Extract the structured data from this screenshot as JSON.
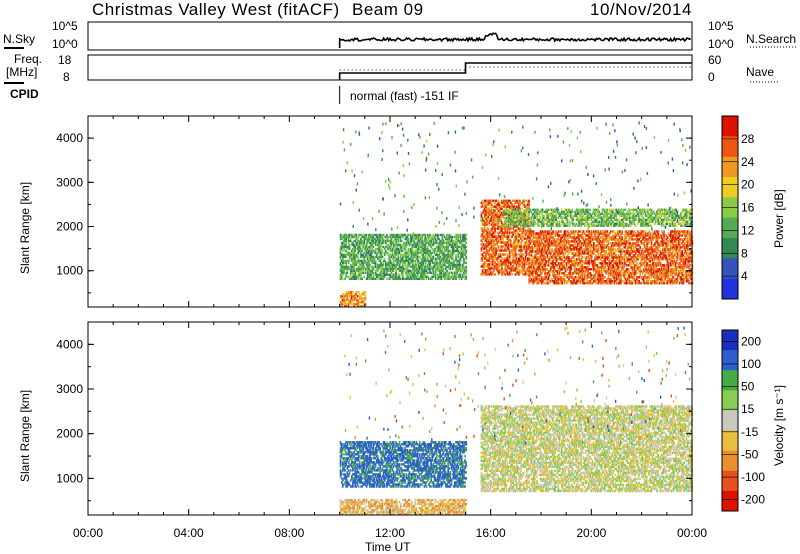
{
  "header": {
    "station": "Christmas Valley West (fitACF)",
    "beam": "Beam 09",
    "date": "10/Nov/2014"
  },
  "top_panels": {
    "nsky_label": "N.Sky",
    "nsearch_label": "N.Search",
    "freq_label": "Freq.",
    "freq_unit": "[MHz]",
    "nave_label": "Nave",
    "cpid_label": "CPID",
    "cpid_value": "normal (fast) -151 IF",
    "noise_ticks_left": [
      "10^5",
      "10^0"
    ],
    "noise_ticks_right": [
      "10^5",
      "10^0"
    ],
    "freq_ticks": [
      "18",
      "8"
    ],
    "nave_ticks": [
      "60",
      "0"
    ]
  },
  "colors": {
    "power_scale": [
      "#2233dd",
      "#3355bb",
      "#338855",
      "#55aa55",
      "#88cc44",
      "#eecc22",
      "#ee9922",
      "#ee5511",
      "#dd1100"
    ],
    "velocity_scale": [
      "#1a2fbf",
      "#2d5fcf",
      "#44aa44",
      "#88cc55",
      "#c8c8c0",
      "#e8c040",
      "#e89030",
      "#e85020",
      "#dd1100"
    ]
  },
  "chart_data": [
    {
      "type": "heatmap",
      "title": "Power",
      "ylabel": "Slant Range [km]",
      "yticks": [
        "4000",
        "3000",
        "2000",
        "1000"
      ],
      "ylim": [
        180,
        4500
      ],
      "colorbar_label": "Power [dB]",
      "colorbar_ticks": [
        "28",
        "24",
        "20",
        "16",
        "12",
        "8",
        "4"
      ],
      "colorbar_range": [
        0,
        32
      ],
      "echo_regions": [
        {
          "t_start": 10.0,
          "t_end": 15.0,
          "r_low": 800,
          "r_high": 1800,
          "power_db": 12
        },
        {
          "t_start": 15.6,
          "t_end": 17.5,
          "r_low": 900,
          "r_high": 2600,
          "power_db": 26
        },
        {
          "t_start": 17.5,
          "t_end": 24.0,
          "r_low": 700,
          "r_high": 1900,
          "power_db": 26
        },
        {
          "t_start": 16.5,
          "t_end": 24.0,
          "r_low": 2000,
          "r_high": 2400,
          "power_db": 14
        },
        {
          "t_start": 10.0,
          "t_end": 11.0,
          "r_low": 180,
          "r_high": 500,
          "power_db": 24
        }
      ]
    },
    {
      "type": "heatmap",
      "title": "Velocity",
      "ylabel": "Slant Range [km]",
      "xlabel": "Time UT",
      "yticks": [
        "4000",
        "3000",
        "2000",
        "1000"
      ],
      "xticks": [
        "00:00",
        "04:00",
        "08:00",
        "12:00",
        "16:00",
        "20:00",
        "00:00"
      ],
      "xlim_hours": [
        0,
        24
      ],
      "ylim": [
        180,
        4500
      ],
      "colorbar_label": "Velocity [m s⁻¹]",
      "colorbar_ticks": [
        "200",
        "100",
        "50",
        "15",
        "-15",
        "-50",
        "-100",
        "-200"
      ],
      "echo_regions": [
        {
          "t_start": 10.0,
          "t_end": 15.0,
          "r_low": 800,
          "r_high": 1800,
          "velocity": 120
        },
        {
          "t_start": 15.6,
          "t_end": 24.0,
          "r_low": 700,
          "r_high": 2600,
          "velocity": 0
        },
        {
          "t_start": 10.0,
          "t_end": 15.0,
          "r_low": 180,
          "r_high": 500,
          "velocity": -40
        }
      ]
    }
  ]
}
